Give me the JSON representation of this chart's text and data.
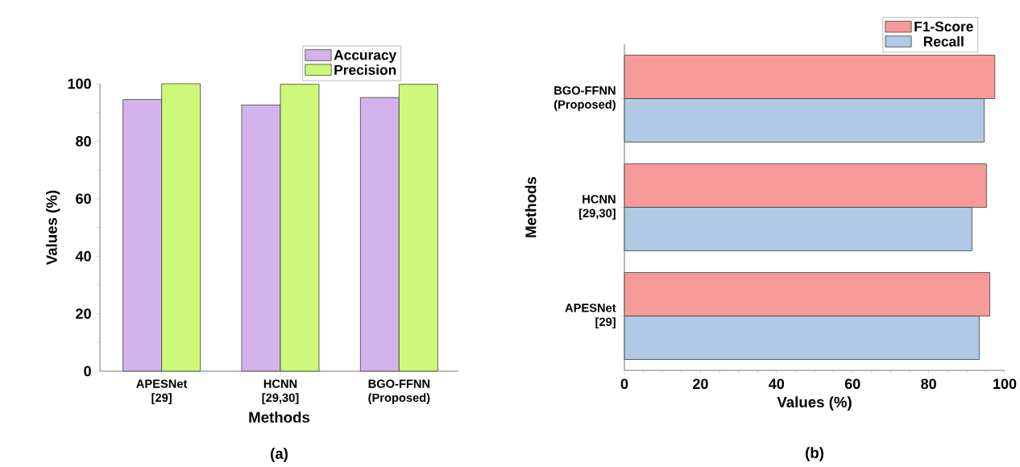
{
  "chart_data": [
    {
      "type": "bar",
      "xlabel": "Methods",
      "ylabel": "Values (%)",
      "categories": [
        "APESNet [29]",
        "HCNN [29,30]",
        "BGO-FFNN (Proposed)"
      ],
      "series": [
        {
          "name": "Accuracy",
          "color": "#d4b3ec",
          "values": [
            94.5,
            92.6,
            95.2
          ]
        },
        {
          "name": "Precision",
          "color": "#cdf87a",
          "values": [
            100,
            99.8,
            99.8
          ]
        }
      ],
      "ylim": [
        0,
        100
      ],
      "yticks": [
        0,
        20,
        40,
        60,
        80,
        100
      ],
      "legend": "top right",
      "annotations": [
        "(a)"
      ]
    },
    {
      "type": "bar",
      "orientation": "horizontal",
      "xlabel": "Values (%)",
      "ylabel": "Methods",
      "categories": [
        "BGO-FFNN (Proposed)",
        "HCNN [29,30]",
        "APESNet [29]"
      ],
      "series": [
        {
          "name": "F1-Score",
          "color": "#f69a9a",
          "values": [
            97.4,
            95.2,
            96.1
          ]
        },
        {
          "name": "Recall",
          "color": "#b0c9e4",
          "values": [
            94.6,
            91.4,
            93.3
          ]
        }
      ],
      "xlim": [
        0,
        100
      ],
      "xticks": [
        0,
        20,
        40,
        60,
        80,
        100
      ],
      "legend": "top right",
      "annotations": [
        "(b)"
      ]
    }
  ]
}
